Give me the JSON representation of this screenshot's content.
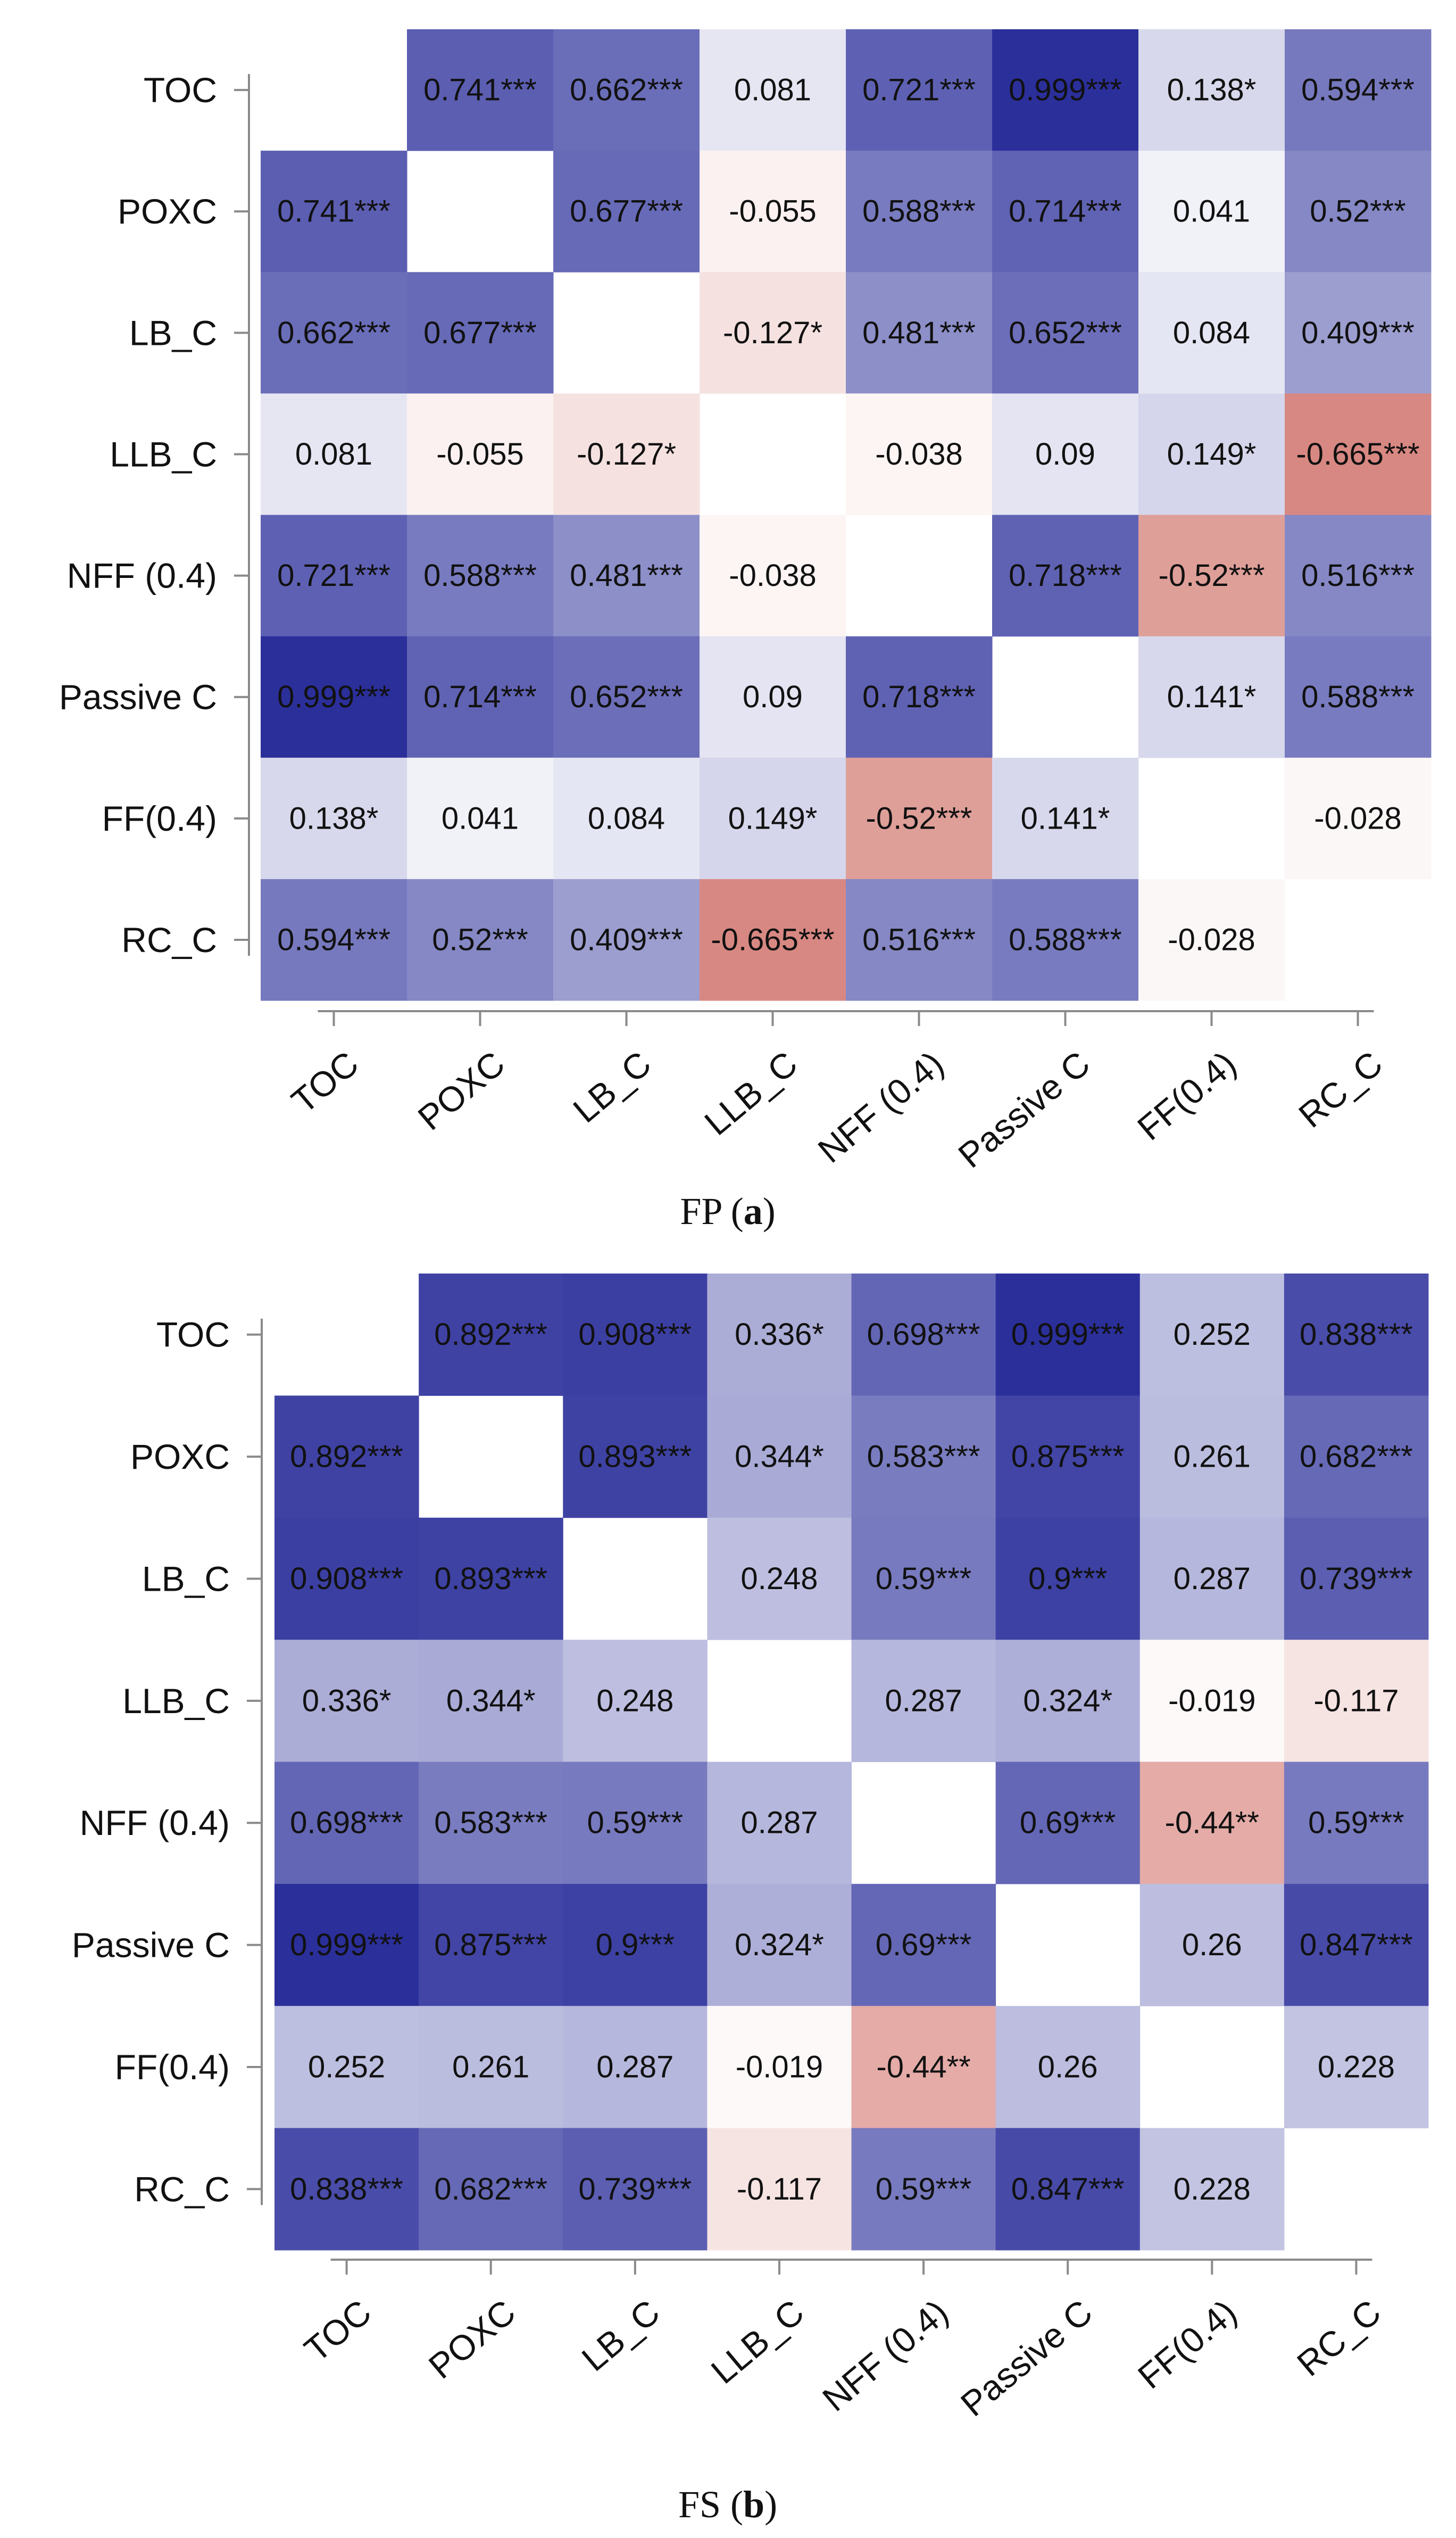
{
  "chart_data": [
    {
      "type": "heatmap",
      "panel": "a",
      "caption": {
        "prefix": "FP (",
        "letter": "a",
        "suffix": ")"
      },
      "rows": [
        "TOC",
        "POXC",
        "LB_C",
        "LLB_C",
        "NFF (0.4)",
        "Passive C",
        "FF(0.4)",
        "RC_C"
      ],
      "columns": [
        "TOC",
        "POXC",
        "LB_C",
        "LLB_C",
        "NFF (0.4)",
        "Passive C",
        "FF(0.4)",
        "RC_C"
      ],
      "values": [
        [
          null,
          0.741,
          0.662,
          0.081,
          0.721,
          0.999,
          0.138,
          0.594
        ],
        [
          0.741,
          null,
          0.677,
          -0.055,
          0.588,
          0.714,
          0.041,
          0.52
        ],
        [
          0.662,
          0.677,
          null,
          -0.127,
          0.481,
          0.652,
          0.084,
          0.409
        ],
        [
          0.081,
          -0.055,
          -0.127,
          null,
          -0.038,
          0.09,
          0.149,
          -0.665
        ],
        [
          0.721,
          0.588,
          0.481,
          -0.038,
          null,
          0.718,
          -0.52,
          0.516
        ],
        [
          0.999,
          0.714,
          0.652,
          0.09,
          0.718,
          null,
          0.141,
          0.588
        ],
        [
          0.138,
          0.041,
          0.084,
          0.149,
          -0.52,
          0.141,
          null,
          -0.028
        ],
        [
          0.594,
          0.52,
          0.409,
          -0.665,
          0.516,
          0.588,
          -0.028,
          null
        ]
      ],
      "labels": [
        [
          "",
          "0.741***",
          "0.662***",
          "0.081",
          "0.721***",
          "0.999***",
          "0.138*",
          "0.594***"
        ],
        [
          "0.741***",
          "",
          "0.677***",
          "-0.055",
          "0.588***",
          "0.714***",
          "0.041",
          "0.52***"
        ],
        [
          "0.662***",
          "0.677***",
          "",
          "-0.127*",
          "0.481***",
          "0.652***",
          "0.084",
          "0.409***"
        ],
        [
          "0.081",
          "-0.055",
          "-0.127*",
          "",
          "-0.038",
          "0.09",
          "0.149*",
          "-0.665***"
        ],
        [
          "0.721***",
          "0.588***",
          "0.481***",
          "-0.038",
          "",
          "0.718***",
          "-0.52***",
          "0.516***"
        ],
        [
          "0.999***",
          "0.714***",
          "0.652***",
          "0.09",
          "0.718***",
          "",
          "0.141*",
          "0.588***"
        ],
        [
          "0.138*",
          "0.041",
          "0.084",
          "0.149*",
          "-0.52***",
          "0.141*",
          "",
          "-0.028"
        ],
        [
          "0.594***",
          "0.52***",
          "0.409***",
          "-0.665***",
          "0.516***",
          "0.588***",
          "-0.028",
          ""
        ]
      ]
    },
    {
      "type": "heatmap",
      "panel": "b",
      "caption": {
        "prefix": "FS (",
        "letter": "b",
        "suffix": ")"
      },
      "rows": [
        "TOC",
        "POXC",
        "LB_C",
        "LLB_C",
        "NFF (0.4)",
        "Passive C",
        "FF(0.4)",
        "RC_C"
      ],
      "columns": [
        "TOC",
        "POXC",
        "LB_C",
        "LLB_C",
        "NFF (0.4)",
        "Passive C",
        "FF(0.4)",
        "RC_C"
      ],
      "values": [
        [
          null,
          0.892,
          0.908,
          0.336,
          0.698,
          0.999,
          0.252,
          0.838
        ],
        [
          0.892,
          null,
          0.893,
          0.344,
          0.583,
          0.875,
          0.261,
          0.682
        ],
        [
          0.908,
          0.893,
          null,
          0.248,
          0.59,
          0.9,
          0.287,
          0.739
        ],
        [
          0.336,
          0.344,
          0.248,
          null,
          0.287,
          0.324,
          -0.019,
          -0.117
        ],
        [
          0.698,
          0.583,
          0.59,
          0.287,
          null,
          0.69,
          -0.44,
          0.59
        ],
        [
          0.999,
          0.875,
          0.9,
          0.324,
          0.69,
          null,
          0.26,
          0.847
        ],
        [
          0.252,
          0.261,
          0.287,
          -0.019,
          -0.44,
          0.26,
          null,
          0.228
        ],
        [
          0.838,
          0.682,
          0.739,
          -0.117,
          0.59,
          0.847,
          0.228,
          null
        ]
      ],
      "labels": [
        [
          "",
          "0.892***",
          "0.908***",
          "0.336*",
          "0.698***",
          "0.999***",
          "0.252",
          "0.838***"
        ],
        [
          "0.892***",
          "",
          "0.893***",
          "0.344*",
          "0.583***",
          "0.875***",
          "0.261",
          "0.682***"
        ],
        [
          "0.908***",
          "0.893***",
          "",
          "0.248",
          "0.59***",
          "0.9***",
          "0.287",
          "0.739***"
        ],
        [
          "0.336*",
          "0.344*",
          "0.248",
          "",
          "0.287",
          "0.324*",
          "-0.019",
          "-0.117"
        ],
        [
          "0.698***",
          "0.583***",
          "0.59***",
          "0.287",
          "",
          "0.69***",
          "-0.44**",
          "0.59***"
        ],
        [
          "0.999***",
          "0.875***",
          "0.9***",
          "0.324*",
          "0.69***",
          "",
          "0.26",
          "0.847***"
        ],
        [
          "0.252",
          "0.261",
          "0.287",
          "-0.019",
          "-0.44**",
          "0.26",
          "",
          "0.228"
        ],
        [
          "0.838***",
          "0.682***",
          "0.739***",
          "-0.117",
          "0.59***",
          "0.847***",
          "0.228",
          ""
        ]
      ]
    }
  ],
  "color_scale": {
    "negative_max": "#c8574e",
    "neutral": "#ffffff",
    "positive_max": "#2b2f9a"
  }
}
